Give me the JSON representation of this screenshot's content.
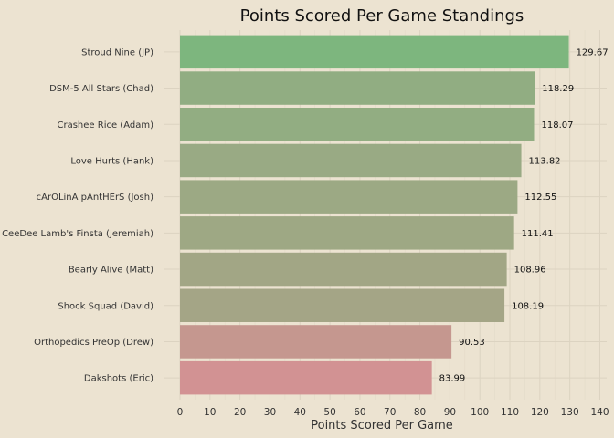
{
  "chart_data": {
    "type": "bar",
    "orientation": "horizontal",
    "title": "Points Scored Per Game Standings",
    "xlabel": "Points Scored Per Game",
    "ylabel": "",
    "categories": [
      "Stroud Nine (JP)",
      "DSM-5 All Stars (Chad)",
      "Crashee Rice (Adam)",
      "Love Hurts (Hank)",
      "cArOLinA pAntHErS (Josh)",
      "CeeDee Lamb's Finsta (Jeremiah)",
      "Bearly Alive (Matt)",
      "Shock Squad (David)",
      "Orthopedics PreOp (Drew)",
      "Dakshots (Eric)"
    ],
    "values": [
      129.67,
      118.29,
      118.07,
      113.82,
      112.55,
      111.41,
      108.96,
      108.19,
      90.53,
      83.99
    ],
    "value_labels": [
      "129.67",
      "118.29",
      "118.07",
      "113.82",
      "112.55",
      "111.41",
      "108.96",
      "108.19",
      "90.53",
      "83.99"
    ],
    "xlim": [
      0,
      140
    ],
    "xticks": [
      "0",
      "10",
      "20",
      "30",
      "40",
      "50",
      "60",
      "70",
      "80",
      "90",
      "100",
      "110",
      "120",
      "130",
      "140"
    ],
    "grid": true,
    "legend": "none",
    "color_scale": {
      "low": "#d29293",
      "mid": "#a6a486",
      "high": "#7db67e"
    }
  }
}
